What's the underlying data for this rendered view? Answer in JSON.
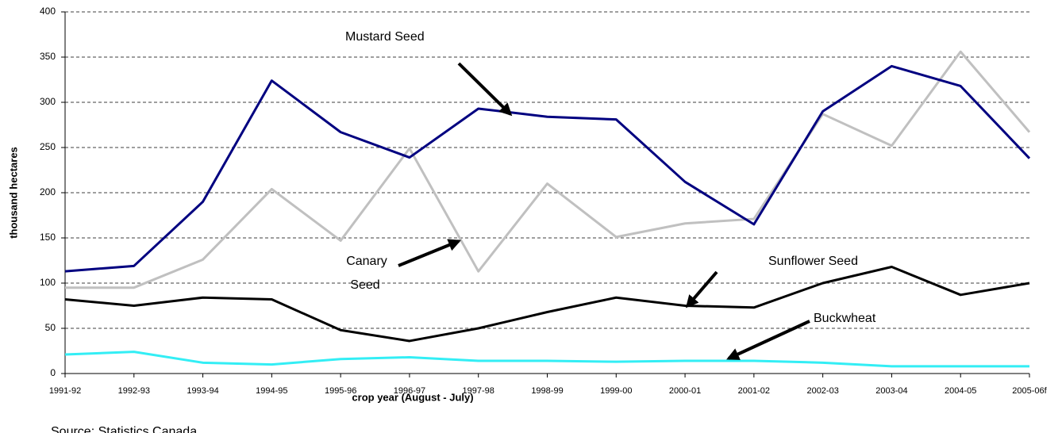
{
  "chart_data": {
    "type": "line",
    "x_label": "crop year (August - July)",
    "y_label": "thousand hectares",
    "source": "Source: Statistics Canada",
    "categories": [
      "1991-92",
      "1992-93",
      "1993-94",
      "1994-95",
      "1995-96",
      "1996-97",
      "1997-98",
      "1998-99",
      "1999-00",
      "2000-01",
      "2001-02",
      "2002-03",
      "2003-04",
      "2004-05",
      "2005-06f"
    ],
    "series": [
      {
        "name": "Mustard Seed",
        "color": "#000080",
        "values": [
          113,
          119,
          190,
          324,
          267,
          239,
          293,
          284,
          281,
          212,
          165,
          290,
          340,
          318,
          238
        ]
      },
      {
        "name": "Canary Seed",
        "color": "#c0c0c0",
        "values": [
          95,
          95,
          126,
          204,
          147,
          249,
          113,
          210,
          151,
          166,
          171,
          287,
          252,
          356,
          267
        ]
      },
      {
        "name": "Sunflower Seed",
        "color": "#000000",
        "values": [
          82,
          75,
          84,
          82,
          48,
          36,
          50,
          68,
          84,
          75,
          73,
          100,
          118,
          87,
          100
        ]
      },
      {
        "name": "Buckwheat",
        "color": "#33eef5",
        "values": [
          21,
          24,
          12,
          10,
          16,
          18,
          14,
          14,
          13,
          14,
          14,
          12,
          8,
          8,
          8
        ]
      }
    ],
    "ylim": [
      0,
      400
    ],
    "yticks": [
      0,
      50,
      100,
      150,
      200,
      250,
      300,
      350,
      400
    ],
    "grid": true
  }
}
